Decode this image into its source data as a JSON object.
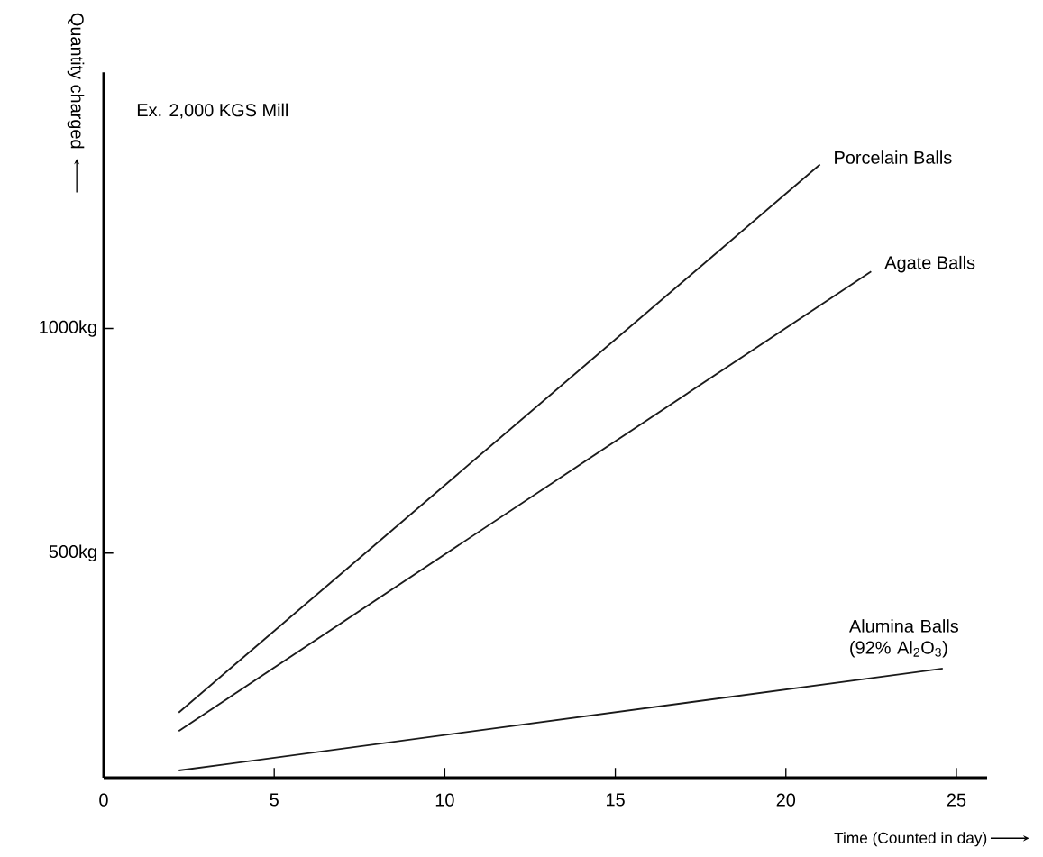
{
  "chart_data": {
    "type": "line",
    "xlabel": "Time (Counted in day)",
    "ylabel": "Quantity charged",
    "annotations": [
      "Ex. 2,000 KGS Mill"
    ],
    "xlim": [
      0,
      25.9
    ],
    "ylim": [
      0,
      1570
    ],
    "xticks": [
      0,
      5,
      10,
      15,
      20,
      25
    ],
    "yticks": [
      {
        "value": 500,
        "label": "500kg"
      },
      {
        "value": 1000,
        "label": "1000kg"
      }
    ],
    "grid": false,
    "legend": false,
    "marker": "none",
    "line_style": "solid",
    "series": [
      {
        "name": "Porcelain Balls",
        "color": "#1a1a1a",
        "x": [
          2.2,
          21.0
        ],
        "values": [
          145,
          1365
        ]
      },
      {
        "name": "Agate Balls",
        "color": "#1a1a1a",
        "x": [
          2.2,
          22.5
        ],
        "values": [
          104,
          1127
        ]
      },
      {
        "name": "Alumina Balls (92% Al$_{2}$O$_{3}$)",
        "color": "#1a1a1a",
        "x": [
          2.2,
          24.6
        ],
        "values": [
          16,
          243
        ]
      }
    ]
  }
}
